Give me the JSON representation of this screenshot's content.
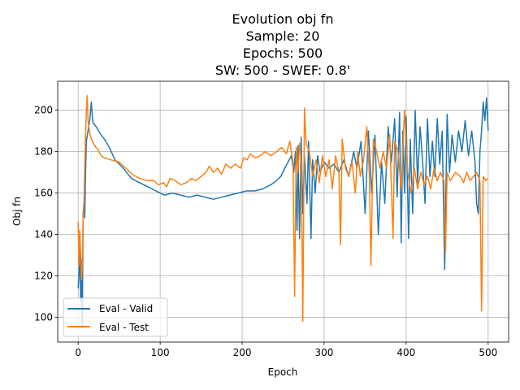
{
  "chart_data": {
    "type": "line",
    "title_lines": [
      "Evolution obj fn",
      "Sample: 20",
      "Epochs: 500",
      "SW: 500 - SWEF: 0.8'"
    ],
    "xlabel": "Epoch",
    "ylabel": "Obj fn",
    "xlim": [
      -25,
      525
    ],
    "ylim": [
      88,
      214
    ],
    "xticks": [
      0,
      100,
      200,
      300,
      400,
      500
    ],
    "yticks": [
      100,
      120,
      140,
      160,
      180,
      200
    ],
    "grid": true,
    "legend_position": "lower-left",
    "series": [
      {
        "name": "Eval - Valid",
        "color": "#1f77b4",
        "points": [
          [
            0,
            114
          ],
          [
            1,
            120
          ],
          [
            2,
            136
          ],
          [
            3,
            108
          ],
          [
            4,
            128
          ],
          [
            5,
            95
          ],
          [
            6,
            150
          ],
          [
            7,
            155
          ],
          [
            8,
            148
          ],
          [
            9,
            170
          ],
          [
            10,
            185
          ],
          [
            12,
            190
          ],
          [
            14,
            195
          ],
          [
            16,
            204
          ],
          [
            17,
            198
          ],
          [
            18,
            194
          ],
          [
            22,
            192
          ],
          [
            28,
            188
          ],
          [
            32,
            186
          ],
          [
            38,
            182
          ],
          [
            45,
            176
          ],
          [
            55,
            172
          ],
          [
            65,
            167
          ],
          [
            75,
            165
          ],
          [
            85,
            163
          ],
          [
            95,
            161
          ],
          [
            105,
            159
          ],
          [
            115,
            160
          ],
          [
            125,
            159
          ],
          [
            135,
            158
          ],
          [
            145,
            159
          ],
          [
            155,
            158
          ],
          [
            165,
            157
          ],
          [
            175,
            158
          ],
          [
            185,
            159
          ],
          [
            195,
            160
          ],
          [
            205,
            161
          ],
          [
            215,
            161
          ],
          [
            225,
            162
          ],
          [
            235,
            164
          ],
          [
            242,
            166
          ],
          [
            247,
            168
          ],
          [
            252,
            172
          ],
          [
            256,
            175
          ],
          [
            260,
            178
          ],
          [
            263,
            170
          ],
          [
            265,
            180
          ],
          [
            267,
            142
          ],
          [
            268,
            183
          ],
          [
            270,
            138
          ],
          [
            272,
            187
          ],
          [
            274,
            150
          ],
          [
            276,
            178
          ],
          [
            279,
            155
          ],
          [
            281,
            185
          ],
          [
            284,
            138
          ],
          [
            286,
            176
          ],
          [
            289,
            160
          ],
          [
            292,
            178
          ],
          [
            295,
            170
          ],
          [
            300,
            175
          ],
          [
            306,
            172
          ],
          [
            312,
            174
          ],
          [
            318,
            170
          ],
          [
            324,
            176
          ],
          [
            330,
            168
          ],
          [
            336,
            180
          ],
          [
            340,
            172
          ],
          [
            345,
            185
          ],
          [
            350,
            150
          ],
          [
            354,
            190
          ],
          [
            358,
            160
          ],
          [
            362,
            188
          ],
          [
            366,
            140
          ],
          [
            370,
            175
          ],
          [
            374,
            155
          ],
          [
            378,
            192
          ],
          [
            382,
            175
          ],
          [
            386,
            196
          ],
          [
            389,
            158
          ],
          [
            392,
            199
          ],
          [
            394,
            136
          ],
          [
            396,
            190
          ],
          [
            398,
            160
          ],
          [
            400,
            197
          ],
          [
            403,
            138
          ],
          [
            405,
            186
          ],
          [
            408,
            150
          ],
          [
            411,
            200
          ],
          [
            414,
            165
          ],
          [
            417,
            192
          ],
          [
            420,
            176
          ],
          [
            423,
            155
          ],
          [
            426,
            196
          ],
          [
            429,
            168
          ],
          [
            432,
            185
          ],
          [
            435,
            168
          ],
          [
            438,
            196
          ],
          [
            441,
            174
          ],
          [
            444,
            190
          ],
          [
            447,
            123
          ],
          [
            450,
            198
          ],
          [
            453,
            170
          ],
          [
            456,
            188
          ],
          [
            460,
            175
          ],
          [
            464,
            190
          ],
          [
            468,
            180
          ],
          [
            472,
            195
          ],
          [
            476,
            178
          ],
          [
            480,
            190
          ],
          [
            484,
            175
          ],
          [
            486,
            155
          ],
          [
            488,
            150
          ],
          [
            490,
            180
          ],
          [
            492,
            190
          ],
          [
            494,
            204
          ],
          [
            496,
            195
          ],
          [
            498,
            206
          ],
          [
            500,
            190
          ]
        ]
      },
      {
        "name": "Eval - Test",
        "color": "#ff7f0e",
        "points": [
          [
            0,
            146
          ],
          [
            1,
            125
          ],
          [
            2,
            142
          ],
          [
            3,
            130
          ],
          [
            4,
            118
          ],
          [
            5,
            125
          ],
          [
            6,
            148
          ],
          [
            7,
            154
          ],
          [
            8,
            172
          ],
          [
            9,
            188
          ],
          [
            10,
            200
          ],
          [
            11,
            207
          ],
          [
            12,
            195
          ],
          [
            14,
            189
          ],
          [
            16,
            186
          ],
          [
            20,
            183
          ],
          [
            24,
            181
          ],
          [
            28,
            178
          ],
          [
            32,
            177
          ],
          [
            40,
            176
          ],
          [
            50,
            175
          ],
          [
            58,
            172
          ],
          [
            66,
            169
          ],
          [
            75,
            167
          ],
          [
            85,
            166
          ],
          [
            92,
            166
          ],
          [
            98,
            164
          ],
          [
            104,
            165
          ],
          [
            108,
            163
          ],
          [
            112,
            167
          ],
          [
            118,
            166
          ],
          [
            125,
            164
          ],
          [
            132,
            165
          ],
          [
            138,
            167
          ],
          [
            144,
            166
          ],
          [
            150,
            168
          ],
          [
            156,
            170
          ],
          [
            160,
            173
          ],
          [
            165,
            170
          ],
          [
            170,
            172
          ],
          [
            175,
            169
          ],
          [
            180,
            174
          ],
          [
            186,
            172
          ],
          [
            192,
            174
          ],
          [
            198,
            172
          ],
          [
            202,
            177
          ],
          [
            206,
            176
          ],
          [
            210,
            179
          ],
          [
            216,
            177
          ],
          [
            222,
            178
          ],
          [
            228,
            180
          ],
          [
            235,
            178
          ],
          [
            242,
            180
          ],
          [
            248,
            182
          ],
          [
            254,
            179
          ],
          [
            258,
            185
          ],
          [
            262,
            175
          ],
          [
            264,
            110
          ],
          [
            266,
            182
          ],
          [
            268,
            170
          ],
          [
            270,
            184
          ],
          [
            272,
            175
          ],
          [
            274,
            98
          ],
          [
            276,
            201
          ],
          [
            278,
            184
          ],
          [
            282,
            180
          ],
          [
            286,
            168
          ],
          [
            290,
            176
          ],
          [
            294,
            165
          ],
          [
            298,
            178
          ],
          [
            302,
            168
          ],
          [
            306,
            176
          ],
          [
            310,
            162
          ],
          [
            314,
            178
          ],
          [
            318,
            170
          ],
          [
            320,
            135
          ],
          [
            322,
            186
          ],
          [
            326,
            172
          ],
          [
            330,
            168
          ],
          [
            334,
            175
          ],
          [
            338,
            160
          ],
          [
            341,
            180
          ],
          [
            344,
            168
          ],
          [
            348,
            176
          ],
          [
            352,
            192
          ],
          [
            355,
            170
          ],
          [
            357,
            125
          ],
          [
            360,
            186
          ],
          [
            364,
            180
          ],
          [
            368,
            172
          ],
          [
            372,
            180
          ],
          [
            376,
            172
          ],
          [
            380,
            188
          ],
          [
            384,
            138
          ],
          [
            386,
            185
          ],
          [
            390,
            180
          ],
          [
            394,
            162
          ],
          [
            398,
            200
          ],
          [
            402,
            170
          ],
          [
            406,
            160
          ],
          [
            410,
            172
          ],
          [
            414,
            162
          ],
          [
            418,
            170
          ],
          [
            422,
            164
          ],
          [
            426,
            168
          ],
          [
            430,
            162
          ],
          [
            434,
            172
          ],
          [
            438,
            166
          ],
          [
            442,
            170
          ],
          [
            446,
            166
          ],
          [
            448,
            131
          ],
          [
            450,
            170
          ],
          [
            454,
            166
          ],
          [
            460,
            170
          ],
          [
            466,
            168
          ],
          [
            470,
            165
          ],
          [
            474,
            170
          ],
          [
            478,
            166
          ],
          [
            482,
            168
          ],
          [
            486,
            170
          ],
          [
            490,
            166
          ],
          [
            492,
            103
          ],
          [
            494,
            168
          ],
          [
            497,
            166
          ],
          [
            500,
            167
          ]
        ]
      }
    ]
  }
}
